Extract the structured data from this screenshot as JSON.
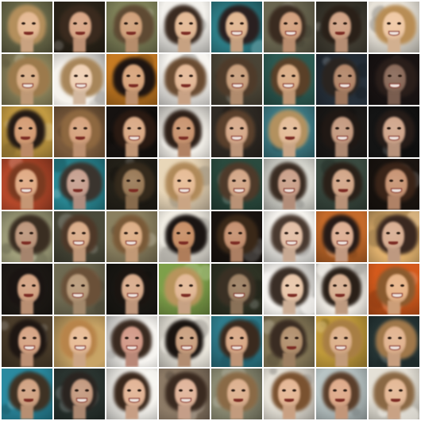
{
  "image": {
    "description_free": true,
    "rows": 8,
    "cols": 8,
    "cells": [
      {
        "bg": "#6b6a4a",
        "hair": "#b48f5c",
        "skin": "#e4b892"
      },
      {
        "bg": "#2b2419",
        "hair": "#3a2a1e",
        "skin": "#d7a585"
      },
      {
        "bg": "#7e8058",
        "hair": "#5f4a33",
        "skin": "#cfa07a"
      },
      {
        "bg": "#f3f1ec",
        "hair": "#3a2a20",
        "skin": "#e2b894"
      },
      {
        "bg": "#2d7d86",
        "hair": "#2a2020",
        "skin": "#e0b590"
      },
      {
        "bg": "#6a6650",
        "hair": "#3a2b20",
        "skin": "#d2a07e"
      },
      {
        "bg": "#3e3a30",
        "hair": "#2a2018",
        "skin": "#cfa184"
      },
      {
        "bg": "#e7e2d8",
        "hair": "#b88d55",
        "skin": "#efc8a4"
      },
      {
        "bg": "#8c845c",
        "hair": "#9c7a4c",
        "skin": "#d9ae86"
      },
      {
        "bg": "#f5f2ec",
        "hair": "#a8865a",
        "skin": "#efd0b4"
      },
      {
        "bg": "#c77b22",
        "hair": "#1e1410",
        "skin": "#d7a47c"
      },
      {
        "bg": "#f7f5f0",
        "hair": "#6a4c32",
        "skin": "#e3b897"
      },
      {
        "bg": "#4a4436",
        "hair": "#4f3b2a",
        "skin": "#c89e7c"
      },
      {
        "bg": "#2c5a52",
        "hair": "#5a4028",
        "skin": "#d9ab84"
      },
      {
        "bg": "#26303a",
        "hair": "#2a2420",
        "skin": "#b3876a"
      },
      {
        "bg": "#1a1414",
        "hair": "#2a1e1a",
        "skin": "#8a6a5a"
      },
      {
        "bg": "#c29a42",
        "hair": "#241a14",
        "skin": "#d49c74"
      },
      {
        "bg": "#7a5a3c",
        "hair": "#8e6840",
        "skin": "#d6a37e"
      },
      {
        "bg": "#161210",
        "hair": "#2a1a12",
        "skin": "#d9a985"
      },
      {
        "bg": "#f2efe8",
        "hair": "#2e2018",
        "skin": "#c99470"
      },
      {
        "bg": "#2f2a24",
        "hair": "#5a402c",
        "skin": "#d6a98a"
      },
      {
        "bg": "#3f7c86",
        "hair": "#b3915f",
        "skin": "#e4bc98"
      },
      {
        "bg": "#1c1a18",
        "hair": "#201814",
        "skin": "#c49a80"
      },
      {
        "bg": "#141414",
        "hair": "#261c18",
        "skin": "#d0a68c"
      },
      {
        "bg": "#b4482a",
        "hair": "#7a3a20",
        "skin": "#e0aa84"
      },
      {
        "bg": "#2a8a96",
        "hair": "#3a342e",
        "skin": "#c7a090"
      },
      {
        "bg": "#232018",
        "hair": "#352a1c",
        "skin": "#9a7a58"
      },
      {
        "bg": "#e8d6b8",
        "hair": "#b08a5a",
        "skin": "#e6bc96"
      },
      {
        "bg": "#2a4a3e",
        "hair": "#4e3a2a",
        "skin": "#d2a686"
      },
      {
        "bg": "#d8d8d0",
        "hair": "#3a2c22",
        "skin": "#caa08a"
      },
      {
        "bg": "#3a4a40",
        "hair": "#2a2018",
        "skin": "#d2a688"
      },
      {
        "bg": "#1a1410",
        "hair": "#3a2418",
        "skin": "#c89474"
      },
      {
        "bg": "#a4a37e",
        "hair": "#3a2e22",
        "skin": "#bc967c"
      },
      {
        "bg": "#4a4a3a",
        "hair": "#4e3828",
        "skin": "#d8ab88"
      },
      {
        "bg": "#8a8060",
        "hair": "#7a5a38",
        "skin": "#dcae86"
      },
      {
        "bg": "#f0ece2",
        "hair": "#1a1412",
        "skin": "#c78e66"
      },
      {
        "bg": "#1a1410",
        "hair": "#3a2818",
        "skin": "#c49070"
      },
      {
        "bg": "#f5f3ee",
        "hair": "#4a3a30",
        "skin": "#e2bfa6"
      },
      {
        "bg": "#c46a2a",
        "hair": "#261a16",
        "skin": "#dcae92"
      },
      {
        "bg": "#e2b26e",
        "hair": "#3a2820",
        "skin": "#d8ae92"
      },
      {
        "bg": "#1e1a16",
        "hair": "#1a1412",
        "skin": "#d2a282"
      },
      {
        "bg": "#6e6a52",
        "hair": "#6a5038",
        "skin": "#b89a7a"
      },
      {
        "bg": "#1a1814",
        "hair": "#1a1410",
        "skin": "#d8ab8c"
      },
      {
        "bg": "#7ea04a",
        "hair": "#b8945c",
        "skin": "#e2b896"
      },
      {
        "bg": "#2e3224",
        "hair": "#3a3024",
        "skin": "#9c8064"
      },
      {
        "bg": "#f5f3ef",
        "hair": "#3a2e26",
        "skin": "#e8c6aa"
      },
      {
        "bg": "#f4f0e8",
        "hair": "#2a2018",
        "skin": "#d8b092"
      },
      {
        "bg": "#d45a1c",
        "hair": "#8a5a2e",
        "skin": "#e8b488"
      },
      {
        "bg": "#4a3c2a",
        "hair": "#1e1612",
        "skin": "#d6a484"
      },
      {
        "bg": "#c8a466",
        "hair": "#b8844a",
        "skin": "#e8bc96"
      },
      {
        "bg": "#f6f4f0",
        "hair": "#3a2a20",
        "skin": "#d29a88"
      },
      {
        "bg": "#ece8de",
        "hair": "#1a1410",
        "skin": "#caa080"
      },
      {
        "bg": "#2e7c8c",
        "hair": "#3a2a1e",
        "skin": "#d8a886"
      },
      {
        "bg": "#8a7c5a",
        "hair": "#3a2c22",
        "skin": "#b2906e"
      },
      {
        "bg": "#c09a3a",
        "hair": "#a87e44",
        "skin": "#dcb08a"
      },
      {
        "bg": "#2a3a3a",
        "hair": "#a0784a",
        "skin": "#e2b490"
      },
      {
        "bg": "#2a8aa0",
        "hair": "#3e3224",
        "skin": "#d0a282"
      },
      {
        "bg": "#2a3430",
        "hair": "#2a2420",
        "skin": "#c49a80"
      },
      {
        "bg": "#f6f4ef",
        "hair": "#3a281c",
        "skin": "#e2b496"
      },
      {
        "bg": "#8c7a66",
        "hair": "#3a2a20",
        "skin": "#e0b49a"
      },
      {
        "bg": "#8a8a72",
        "hair": "#8a6a46",
        "skin": "#dcb08e"
      },
      {
        "bg": "#e6e2d8",
        "hair": "#7a5230",
        "skin": "#e4b694"
      },
      {
        "bg": "#b8c4c4",
        "hair": "#5a3e2a",
        "skin": "#deaa8a"
      },
      {
        "bg": "#e4e0d6",
        "hair": "#8a6844",
        "skin": "#e4b896"
      }
    ]
  }
}
